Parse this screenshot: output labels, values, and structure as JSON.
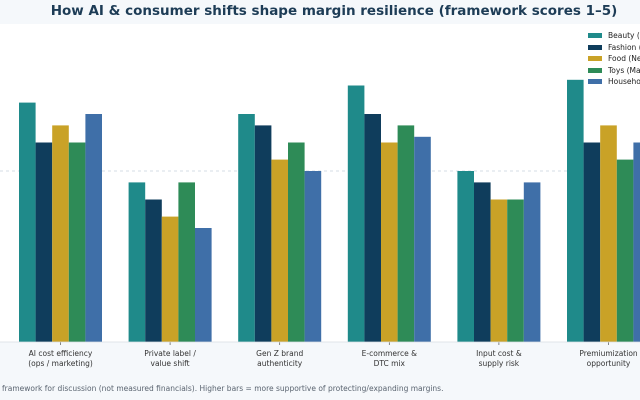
{
  "chart_data": {
    "type": "bar",
    "title": "How AI & consumer shifts shape margin resilience (framework scores 1–5)",
    "categories": [
      [
        "AI cost efficiency",
        "(ops / marketing)"
      ],
      [
        "Private label /",
        "value shift"
      ],
      [
        "Gen Z brand",
        "authenticity"
      ],
      [
        "E-commerce &",
        "DTC mix"
      ],
      [
        "Input cost &",
        "supply risk"
      ],
      [
        "Premiumization",
        "opportunity"
      ]
    ],
    "series": [
      {
        "name": "Beauty (",
        "color": "#1f8a8a",
        "values": [
          4.2,
          2.8,
          4.0,
          4.5,
          3.0,
          4.6
        ]
      },
      {
        "name": "Fashion (",
        "color": "#0f3d5c",
        "values": [
          3.5,
          2.5,
          3.8,
          4.0,
          2.8,
          3.5
        ]
      },
      {
        "name": "Food (Ne",
        "color": "#c9a227",
        "values": [
          3.8,
          2.2,
          3.2,
          3.5,
          2.5,
          3.8
        ]
      },
      {
        "name": "Toys (Ma",
        "color": "#2e8b57",
        "values": [
          3.5,
          2.8,
          3.5,
          3.8,
          2.5,
          3.2
        ]
      },
      {
        "name": "Househo",
        "color": "#3f6fa8",
        "values": [
          4.0,
          2.0,
          3.0,
          3.6,
          2.8,
          3.5
        ]
      }
    ],
    "ylim": [
      0,
      6
    ],
    "reference_line": 3,
    "grid": false,
    "legend_position": "top-right",
    "footnote": "framework for discussion (not measured financials). Higher bars = more supportive of protecting/expanding margins."
  }
}
